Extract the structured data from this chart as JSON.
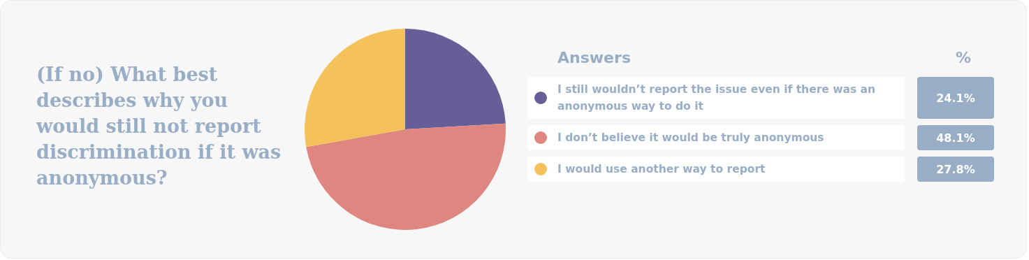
{
  "chart_data": {
    "type": "pie",
    "title": "(If no) What best describes why you would still not report discrimination if it was anonymous?",
    "legend_title": "Answers",
    "annotations": [
      "%"
    ],
    "categories": [
      "I still wouldn’t report the issue even if there was an anonymous way to do it",
      "I don’t believe it would be truly anonymous",
      "I would use another way to report"
    ],
    "values": [
      24.1,
      48.1,
      27.8
    ],
    "value_labels": [
      "24.1%",
      "48.1%",
      "27.8%"
    ],
    "colors": [
      "#665e96",
      "#e08680",
      "#f5c15a"
    ],
    "legend": "right"
  }
}
